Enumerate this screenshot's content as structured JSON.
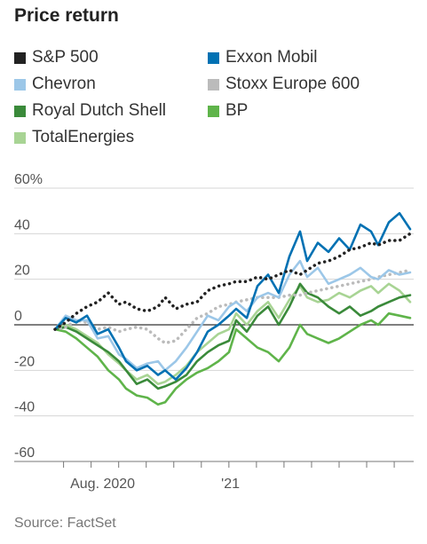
{
  "chart_data": {
    "type": "line",
    "title": "Price return",
    "source": "Source: FactSet",
    "y_ticks": [
      "60%",
      "40",
      "20",
      "0",
      "-20",
      "-40",
      "-60"
    ],
    "y_tick_values": [
      60,
      40,
      20,
      0,
      -20,
      -40,
      -60
    ],
    "ylim": [
      -60,
      60
    ],
    "x_tick_labels": [
      {
        "label": "Aug. 2020",
        "x": 0.134
      },
      {
        "label": "'21",
        "x": 0.494
      }
    ],
    "x_range": [
      0,
      1
    ],
    "grid": true,
    "legend_placement": "top",
    "series": [
      {
        "name": "S&P 500",
        "color": "#222222",
        "style": "dotted",
        "values": [
          [
            0.0,
            -2
          ],
          [
            0.03,
            1
          ],
          [
            0.06,
            5
          ],
          [
            0.09,
            8
          ],
          [
            0.12,
            10
          ],
          [
            0.15,
            14
          ],
          [
            0.18,
            9
          ],
          [
            0.2,
            10
          ],
          [
            0.23,
            7
          ],
          [
            0.26,
            6
          ],
          [
            0.29,
            8
          ],
          [
            0.31,
            12
          ],
          [
            0.34,
            7
          ],
          [
            0.37,
            9
          ],
          [
            0.4,
            10
          ],
          [
            0.43,
            15
          ],
          [
            0.46,
            17
          ],
          [
            0.49,
            18
          ],
          [
            0.51,
            19
          ],
          [
            0.54,
            19
          ],
          [
            0.57,
            21
          ],
          [
            0.6,
            20
          ],
          [
            0.63,
            22
          ],
          [
            0.66,
            24
          ],
          [
            0.69,
            22
          ],
          [
            0.71,
            24
          ],
          [
            0.74,
            27
          ],
          [
            0.77,
            28
          ],
          [
            0.8,
            30
          ],
          [
            0.83,
            33
          ],
          [
            0.86,
            34
          ],
          [
            0.89,
            36
          ],
          [
            0.91,
            35
          ],
          [
            0.94,
            37
          ],
          [
            0.97,
            37
          ],
          [
            1.0,
            40
          ]
        ]
      },
      {
        "name": "Exxon Mobil",
        "color": "#0071b3",
        "style": "solid",
        "values": [
          [
            0.0,
            -2
          ],
          [
            0.03,
            3
          ],
          [
            0.06,
            1
          ],
          [
            0.09,
            4
          ],
          [
            0.12,
            -4
          ],
          [
            0.15,
            -2
          ],
          [
            0.18,
            -10
          ],
          [
            0.2,
            -16
          ],
          [
            0.23,
            -20
          ],
          [
            0.26,
            -18
          ],
          [
            0.29,
            -22
          ],
          [
            0.31,
            -20
          ],
          [
            0.34,
            -24
          ],
          [
            0.37,
            -19
          ],
          [
            0.4,
            -12
          ],
          [
            0.43,
            -3
          ],
          [
            0.46,
            0
          ],
          [
            0.49,
            4
          ],
          [
            0.51,
            7
          ],
          [
            0.54,
            3
          ],
          [
            0.57,
            17
          ],
          [
            0.6,
            22
          ],
          [
            0.63,
            14
          ],
          [
            0.66,
            30
          ],
          [
            0.69,
            41
          ],
          [
            0.71,
            28
          ],
          [
            0.74,
            36
          ],
          [
            0.77,
            32
          ],
          [
            0.8,
            38
          ],
          [
            0.83,
            33
          ],
          [
            0.86,
            44
          ],
          [
            0.89,
            41
          ],
          [
            0.91,
            35
          ],
          [
            0.94,
            45
          ],
          [
            0.97,
            49
          ],
          [
            1.0,
            42
          ]
        ]
      },
      {
        "name": "Chevron",
        "color": "#9cc7e8",
        "style": "solid",
        "values": [
          [
            0.0,
            -2
          ],
          [
            0.03,
            4
          ],
          [
            0.06,
            2
          ],
          [
            0.09,
            2
          ],
          [
            0.12,
            -6
          ],
          [
            0.15,
            -5
          ],
          [
            0.18,
            -13
          ],
          [
            0.2,
            -15
          ],
          [
            0.23,
            -19
          ],
          [
            0.26,
            -17
          ],
          [
            0.29,
            -16
          ],
          [
            0.31,
            -20
          ],
          [
            0.34,
            -16
          ],
          [
            0.37,
            -10
          ],
          [
            0.4,
            -3
          ],
          [
            0.43,
            4
          ],
          [
            0.46,
            2
          ],
          [
            0.49,
            8
          ],
          [
            0.51,
            10
          ],
          [
            0.54,
            6
          ],
          [
            0.57,
            12
          ],
          [
            0.6,
            14
          ],
          [
            0.63,
            12
          ],
          [
            0.66,
            22
          ],
          [
            0.69,
            28
          ],
          [
            0.71,
            21
          ],
          [
            0.74,
            25
          ],
          [
            0.77,
            18
          ],
          [
            0.8,
            20
          ],
          [
            0.83,
            22
          ],
          [
            0.86,
            25
          ],
          [
            0.89,
            21
          ],
          [
            0.91,
            20
          ],
          [
            0.94,
            24
          ],
          [
            0.97,
            22
          ],
          [
            1.0,
            23
          ]
        ]
      },
      {
        "name": "Stoxx Europe 600",
        "color": "#bbbbbb",
        "style": "dotted",
        "values": [
          [
            0.0,
            -2
          ],
          [
            0.03,
            -1
          ],
          [
            0.06,
            2
          ],
          [
            0.09,
            1
          ],
          [
            0.12,
            -2
          ],
          [
            0.15,
            -1
          ],
          [
            0.18,
            -3
          ],
          [
            0.2,
            -2
          ],
          [
            0.23,
            -1
          ],
          [
            0.26,
            -2
          ],
          [
            0.29,
            -6
          ],
          [
            0.31,
            -8
          ],
          [
            0.34,
            -7
          ],
          [
            0.37,
            -2
          ],
          [
            0.4,
            3
          ],
          [
            0.43,
            5
          ],
          [
            0.46,
            8
          ],
          [
            0.49,
            9
          ],
          [
            0.51,
            10
          ],
          [
            0.54,
            11
          ],
          [
            0.57,
            12
          ],
          [
            0.6,
            12
          ],
          [
            0.63,
            12
          ],
          [
            0.66,
            13
          ],
          [
            0.69,
            13
          ],
          [
            0.71,
            14
          ],
          [
            0.74,
            15
          ],
          [
            0.77,
            16
          ],
          [
            0.8,
            17
          ],
          [
            0.83,
            18
          ],
          [
            0.86,
            19
          ],
          [
            0.89,
            20
          ],
          [
            0.91,
            21
          ],
          [
            0.94,
            22
          ],
          [
            0.97,
            23
          ],
          [
            1.0,
            24
          ]
        ]
      },
      {
        "name": "Royal Dutch Shell",
        "color": "#3a8a3a",
        "style": "solid",
        "values": [
          [
            0.0,
            -2
          ],
          [
            0.03,
            -1
          ],
          [
            0.06,
            -3
          ],
          [
            0.09,
            -6
          ],
          [
            0.12,
            -9
          ],
          [
            0.15,
            -12
          ],
          [
            0.18,
            -16
          ],
          [
            0.2,
            -20
          ],
          [
            0.23,
            -26
          ],
          [
            0.26,
            -24
          ],
          [
            0.29,
            -28
          ],
          [
            0.31,
            -27
          ],
          [
            0.34,
            -25
          ],
          [
            0.37,
            -22
          ],
          [
            0.4,
            -16
          ],
          [
            0.43,
            -12
          ],
          [
            0.46,
            -9
          ],
          [
            0.49,
            -7
          ],
          [
            0.51,
            2
          ],
          [
            0.54,
            -3
          ],
          [
            0.57,
            4
          ],
          [
            0.6,
            8
          ],
          [
            0.63,
            0
          ],
          [
            0.66,
            8
          ],
          [
            0.69,
            18
          ],
          [
            0.71,
            14
          ],
          [
            0.74,
            12
          ],
          [
            0.77,
            8
          ],
          [
            0.8,
            5
          ],
          [
            0.83,
            8
          ],
          [
            0.86,
            4
          ],
          [
            0.89,
            6
          ],
          [
            0.91,
            8
          ],
          [
            0.94,
            10
          ],
          [
            0.97,
            12
          ],
          [
            1.0,
            13
          ]
        ]
      },
      {
        "name": "BP",
        "color": "#5fb44a",
        "style": "solid",
        "values": [
          [
            0.0,
            -2
          ],
          [
            0.03,
            -3
          ],
          [
            0.06,
            -6
          ],
          [
            0.09,
            -10
          ],
          [
            0.12,
            -14
          ],
          [
            0.15,
            -20
          ],
          [
            0.18,
            -24
          ],
          [
            0.2,
            -28
          ],
          [
            0.23,
            -31
          ],
          [
            0.26,
            -32
          ],
          [
            0.29,
            -35
          ],
          [
            0.31,
            -34
          ],
          [
            0.34,
            -28
          ],
          [
            0.37,
            -24
          ],
          [
            0.4,
            -21
          ],
          [
            0.43,
            -19
          ],
          [
            0.46,
            -16
          ],
          [
            0.49,
            -12
          ],
          [
            0.51,
            -2
          ],
          [
            0.54,
            -6
          ],
          [
            0.57,
            -10
          ],
          [
            0.6,
            -12
          ],
          [
            0.63,
            -16
          ],
          [
            0.66,
            -10
          ],
          [
            0.69,
            0
          ],
          [
            0.71,
            -4
          ],
          [
            0.74,
            -6
          ],
          [
            0.77,
            -8
          ],
          [
            0.8,
            -6
          ],
          [
            0.83,
            -3
          ],
          [
            0.86,
            0
          ],
          [
            0.89,
            2
          ],
          [
            0.91,
            0
          ],
          [
            0.94,
            5
          ],
          [
            0.97,
            4
          ],
          [
            1.0,
            3
          ]
        ]
      },
      {
        "name": "TotalEnergies",
        "color": "#a8d494",
        "style": "solid",
        "values": [
          [
            0.0,
            -2
          ],
          [
            0.03,
            0
          ],
          [
            0.06,
            -2
          ],
          [
            0.09,
            -5
          ],
          [
            0.12,
            -8
          ],
          [
            0.15,
            -13
          ],
          [
            0.18,
            -17
          ],
          [
            0.2,
            -20
          ],
          [
            0.23,
            -24
          ],
          [
            0.26,
            -22
          ],
          [
            0.29,
            -26
          ],
          [
            0.31,
            -25
          ],
          [
            0.34,
            -22
          ],
          [
            0.37,
            -18
          ],
          [
            0.4,
            -12
          ],
          [
            0.43,
            -8
          ],
          [
            0.46,
            -4
          ],
          [
            0.49,
            -2
          ],
          [
            0.51,
            5
          ],
          [
            0.54,
            0
          ],
          [
            0.57,
            6
          ],
          [
            0.6,
            10
          ],
          [
            0.63,
            3
          ],
          [
            0.66,
            11
          ],
          [
            0.69,
            17
          ],
          [
            0.71,
            12
          ],
          [
            0.74,
            10
          ],
          [
            0.77,
            11
          ],
          [
            0.8,
            14
          ],
          [
            0.83,
            12
          ],
          [
            0.86,
            15
          ],
          [
            0.89,
            17
          ],
          [
            0.91,
            14
          ],
          [
            0.94,
            18
          ],
          [
            0.97,
            15
          ],
          [
            1.0,
            10
          ]
        ]
      }
    ]
  }
}
